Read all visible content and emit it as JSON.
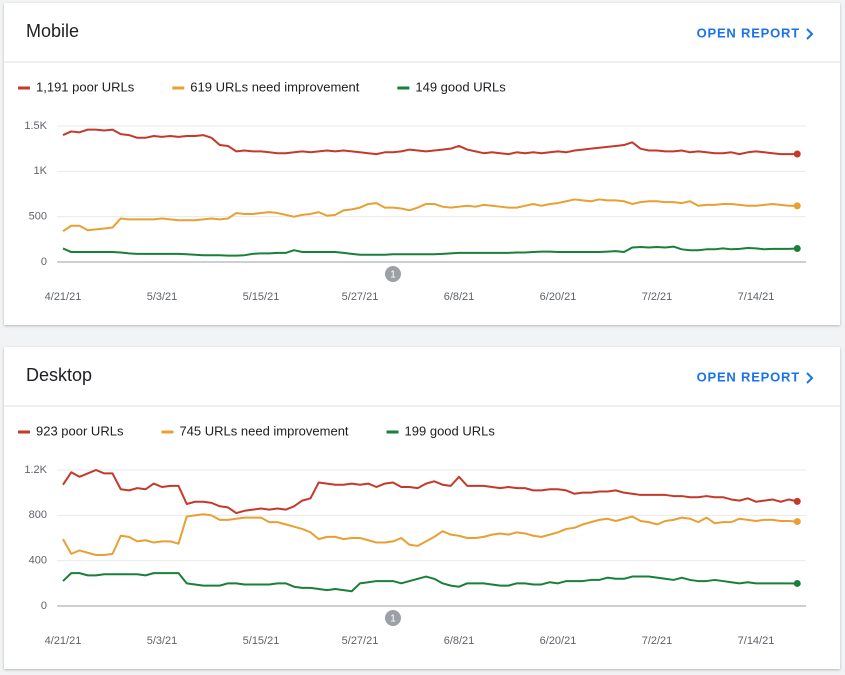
{
  "chart_data": [
    {
      "type": "line",
      "title": "Mobile",
      "action": "OPEN REPORT",
      "categories": [
        "4/21/21",
        null,
        null,
        null,
        null,
        null,
        null,
        null,
        null,
        null,
        null,
        null,
        "5/3/21",
        null,
        null,
        null,
        null,
        null,
        null,
        null,
        null,
        null,
        null,
        null,
        "5/15/21",
        null,
        null,
        null,
        null,
        null,
        null,
        null,
        null,
        null,
        null,
        null,
        "5/27/21",
        null,
        null,
        null,
        null,
        null,
        null,
        null,
        null,
        null,
        null,
        null,
        "6/8/21",
        null,
        null,
        null,
        null,
        null,
        null,
        null,
        null,
        null,
        null,
        null,
        "6/20/21",
        null,
        null,
        null,
        null,
        null,
        null,
        null,
        null,
        null,
        null,
        null,
        "7/2/21",
        null,
        null,
        null,
        null,
        null,
        null,
        null,
        null,
        null,
        null,
        null,
        "7/14/21",
        null,
        null,
        null,
        null,
        null
      ],
      "ylim": [
        0,
        1500
      ],
      "yticks": [
        0,
        500,
        {
          "value": 1000,
          "label": "1K"
        },
        {
          "value": 1500,
          "label": "1.5K"
        }
      ],
      "grid": true,
      "annotations": [
        {
          "label": "1",
          "x": 40
        }
      ],
      "series": [
        {
          "name": "1,191 poor URLs",
          "color": "#c5392a",
          "values": [
            1400,
            1440,
            1430,
            1460,
            1460,
            1450,
            1460,
            1410,
            1400,
            1370,
            1370,
            1390,
            1380,
            1390,
            1380,
            1390,
            1390,
            1400,
            1370,
            1290,
            1280,
            1220,
            1230,
            1220,
            1220,
            1210,
            1200,
            1200,
            1210,
            1220,
            1210,
            1220,
            1230,
            1220,
            1230,
            1220,
            1210,
            1200,
            1190,
            1210,
            1210,
            1220,
            1240,
            1230,
            1220,
            1230,
            1240,
            1250,
            1280,
            1240,
            1220,
            1200,
            1210,
            1200,
            1190,
            1210,
            1200,
            1210,
            1200,
            1210,
            1220,
            1210,
            1230,
            1240,
            1250,
            1260,
            1270,
            1280,
            1290,
            1320,
            1250,
            1230,
            1230,
            1220,
            1220,
            1230,
            1210,
            1220,
            1210,
            1200,
            1200,
            1210,
            1190,
            1210,
            1220,
            1210,
            1200,
            1190,
            1190,
            1191
          ]
        },
        {
          "name": "619 URLs need improvement",
          "color": "#e8a033",
          "values": [
            340,
            400,
            400,
            350,
            360,
            370,
            380,
            480,
            470,
            470,
            470,
            470,
            480,
            470,
            460,
            460,
            460,
            470,
            480,
            470,
            480,
            540,
            530,
            530,
            540,
            550,
            540,
            520,
            500,
            520,
            530,
            550,
            510,
            520,
            570,
            580,
            600,
            640,
            650,
            600,
            600,
            590,
            570,
            600,
            640,
            640,
            610,
            600,
            610,
            620,
            610,
            630,
            620,
            610,
            600,
            600,
            620,
            640,
            620,
            640,
            650,
            670,
            690,
            680,
            670,
            690,
            680,
            680,
            670,
            640,
            660,
            670,
            670,
            660,
            660,
            650,
            670,
            620,
            630,
            630,
            640,
            640,
            630,
            620,
            620,
            630,
            640,
            630,
            620,
            619
          ]
        },
        {
          "name": "149 good URLs",
          "color": "#188038",
          "values": [
            150,
            110,
            110,
            110,
            110,
            110,
            110,
            105,
            95,
            90,
            90,
            90,
            90,
            90,
            90,
            85,
            80,
            75,
            75,
            75,
            70,
            70,
            75,
            90,
            95,
            95,
            100,
            100,
            130,
            110,
            110,
            110,
            110,
            110,
            100,
            90,
            80,
            80,
            80,
            80,
            85,
            85,
            85,
            85,
            85,
            85,
            90,
            95,
            100,
            100,
            100,
            100,
            100,
            100,
            100,
            105,
            105,
            110,
            115,
            115,
            110,
            110,
            110,
            110,
            110,
            110,
            115,
            120,
            110,
            160,
            165,
            160,
            165,
            160,
            170,
            140,
            130,
            130,
            140,
            140,
            150,
            140,
            145,
            155,
            150,
            140,
            145,
            145,
            145,
            149
          ]
        }
      ]
    },
    {
      "type": "line",
      "title": "Desktop",
      "action": "OPEN REPORT",
      "categories": [
        "4/21/21",
        null,
        null,
        null,
        null,
        null,
        null,
        null,
        null,
        null,
        null,
        null,
        "5/3/21",
        null,
        null,
        null,
        null,
        null,
        null,
        null,
        null,
        null,
        null,
        null,
        "5/15/21",
        null,
        null,
        null,
        null,
        null,
        null,
        null,
        null,
        null,
        null,
        null,
        "5/27/21",
        null,
        null,
        null,
        null,
        null,
        null,
        null,
        null,
        null,
        null,
        null,
        "6/8/21",
        null,
        null,
        null,
        null,
        null,
        null,
        null,
        null,
        null,
        null,
        null,
        "6/20/21",
        null,
        null,
        null,
        null,
        null,
        null,
        null,
        null,
        null,
        null,
        null,
        "7/2/21",
        null,
        null,
        null,
        null,
        null,
        null,
        null,
        null,
        null,
        null,
        null,
        "7/14/21",
        null,
        null,
        null,
        null,
        null
      ],
      "ylim": [
        0,
        1200
      ],
      "yticks": [
        0,
        400,
        800,
        {
          "value": 1200,
          "label": "1.2K"
        }
      ],
      "grid": true,
      "annotations": [
        {
          "label": "1",
          "x": 40
        }
      ],
      "series": [
        {
          "name": "923 poor URLs",
          "color": "#c5392a",
          "values": [
            1070,
            1180,
            1140,
            1170,
            1200,
            1170,
            1170,
            1030,
            1020,
            1040,
            1030,
            1080,
            1050,
            1060,
            1060,
            900,
            920,
            920,
            910,
            880,
            870,
            820,
            840,
            850,
            860,
            850,
            860,
            850,
            880,
            930,
            950,
            1090,
            1080,
            1070,
            1070,
            1080,
            1070,
            1080,
            1050,
            1080,
            1090,
            1050,
            1050,
            1040,
            1080,
            1100,
            1070,
            1060,
            1140,
            1060,
            1060,
            1060,
            1050,
            1040,
            1050,
            1040,
            1040,
            1020,
            1020,
            1030,
            1030,
            1020,
            990,
            1000,
            1000,
            1010,
            1010,
            1020,
            1000,
            990,
            980,
            980,
            980,
            980,
            970,
            970,
            960,
            960,
            970,
            960,
            960,
            940,
            930,
            950,
            920,
            930,
            940,
            920,
            940,
            923
          ]
        },
        {
          "name": "745 URLs need improvement",
          "color": "#e8a033",
          "values": [
            590,
            460,
            490,
            470,
            450,
            450,
            460,
            620,
            610,
            570,
            580,
            560,
            570,
            570,
            550,
            790,
            800,
            810,
            800,
            760,
            760,
            770,
            780,
            780,
            780,
            740,
            740,
            720,
            700,
            680,
            650,
            590,
            610,
            610,
            590,
            600,
            600,
            580,
            560,
            560,
            570,
            600,
            540,
            530,
            570,
            610,
            660,
            630,
            620,
            600,
            600,
            610,
            630,
            640,
            630,
            650,
            640,
            620,
            610,
            630,
            650,
            680,
            690,
            720,
            740,
            760,
            770,
            750,
            770,
            790,
            750,
            740,
            720,
            750,
            760,
            780,
            770,
            740,
            780,
            730,
            740,
            740,
            770,
            760,
            750,
            760,
            760,
            750,
            750,
            745
          ]
        },
        {
          "name": "199 good URLs",
          "color": "#188038",
          "values": [
            220,
            290,
            290,
            270,
            270,
            280,
            280,
            280,
            280,
            280,
            270,
            290,
            290,
            290,
            290,
            200,
            190,
            180,
            180,
            180,
            200,
            200,
            190,
            190,
            190,
            190,
            200,
            200,
            170,
            160,
            160,
            150,
            140,
            150,
            140,
            130,
            200,
            210,
            220,
            220,
            220,
            200,
            220,
            240,
            260,
            240,
            200,
            180,
            170,
            200,
            200,
            200,
            190,
            180,
            180,
            200,
            200,
            190,
            190,
            210,
            200,
            220,
            220,
            220,
            230,
            230,
            250,
            240,
            240,
            260,
            260,
            260,
            250,
            240,
            230,
            250,
            230,
            220,
            220,
            230,
            220,
            210,
            200,
            210,
            200,
            200,
            200,
            200,
            200,
            199
          ]
        }
      ]
    }
  ]
}
